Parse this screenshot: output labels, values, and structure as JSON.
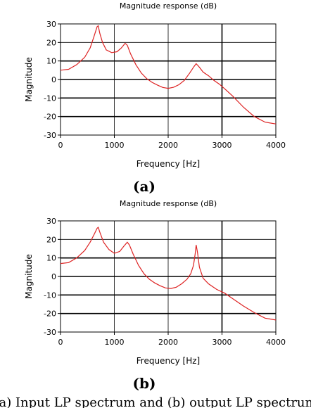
{
  "chart_data": [
    {
      "type": "line",
      "panel_label": "(a)",
      "title": "Magnitude response (dB)",
      "xlabel": "Frequency [Hz]",
      "ylabel": "Magnitude",
      "xlim": [
        0,
        4000
      ],
      "ylim": [
        -30,
        30
      ],
      "xticks": [
        0,
        1000,
        2000,
        3000,
        4000
      ],
      "yticks": [
        30,
        20,
        10,
        0,
        -10,
        -20,
        -30
      ],
      "grid": true,
      "series": [
        {
          "color": "#dd2222",
          "points": [
            [
              0,
              5
            ],
            [
              150,
              5.5
            ],
            [
              300,
              8
            ],
            [
              450,
              12
            ],
            [
              550,
              17
            ],
            [
              620,
              23
            ],
            [
              680,
              28.5
            ],
            [
              700,
              29
            ],
            [
              730,
              25
            ],
            [
              780,
              20
            ],
            [
              850,
              16
            ],
            [
              950,
              14.5
            ],
            [
              1050,
              15
            ],
            [
              1130,
              17
            ],
            [
              1200,
              19.5
            ],
            [
              1240,
              18.5
            ],
            [
              1300,
              14
            ],
            [
              1400,
              8
            ],
            [
              1500,
              3.5
            ],
            [
              1600,
              0.5
            ],
            [
              1700,
              -1.5
            ],
            [
              1800,
              -3
            ],
            [
              1900,
              -4.3
            ],
            [
              2000,
              -4.8
            ],
            [
              2100,
              -4.2
            ],
            [
              2200,
              -2.8
            ],
            [
              2300,
              -0.5
            ],
            [
              2400,
              3.5
            ],
            [
              2480,
              7
            ],
            [
              2520,
              8.5
            ],
            [
              2570,
              7
            ],
            [
              2650,
              4
            ],
            [
              2750,
              2
            ],
            [
              2850,
              -0.5
            ],
            [
              2950,
              -2.5
            ],
            [
              3050,
              -5
            ],
            [
              3200,
              -9
            ],
            [
              3400,
              -15
            ],
            [
              3600,
              -20
            ],
            [
              3800,
              -23
            ],
            [
              4000,
              -24
            ]
          ]
        }
      ]
    },
    {
      "type": "line",
      "panel_label": "(b)",
      "title": "Magnitude response (dB)",
      "xlabel": "Frequency [Hz]",
      "ylabel": "Magnitude",
      "xlim": [
        0,
        4000
      ],
      "ylim": [
        -30,
        30
      ],
      "xticks": [
        0,
        1000,
        2000,
        3000,
        4000
      ],
      "yticks": [
        30,
        20,
        10,
        0,
        -10,
        -20,
        -30
      ],
      "grid": true,
      "series": [
        {
          "color": "#dd2222",
          "points": [
            [
              0,
              7
            ],
            [
              150,
              7.5
            ],
            [
              300,
              10
            ],
            [
              450,
              14
            ],
            [
              550,
              18.5
            ],
            [
              630,
              23
            ],
            [
              680,
              26
            ],
            [
              700,
              26.5
            ],
            [
              730,
              24
            ],
            [
              800,
              18.5
            ],
            [
              900,
              14.5
            ],
            [
              1000,
              12.5
            ],
            [
              1100,
              13.5
            ],
            [
              1180,
              16.5
            ],
            [
              1240,
              18.5
            ],
            [
              1280,
              17
            ],
            [
              1350,
              12
            ],
            [
              1450,
              6
            ],
            [
              1550,
              1.5
            ],
            [
              1650,
              -1.5
            ],
            [
              1750,
              -3.5
            ],
            [
              1850,
              -5
            ],
            [
              1950,
              -6.2
            ],
            [
              2050,
              -6.5
            ],
            [
              2150,
              -5.8
            ],
            [
              2250,
              -4
            ],
            [
              2350,
              -1.5
            ],
            [
              2420,
              1.5
            ],
            [
              2470,
              6
            ],
            [
              2500,
              12
            ],
            [
              2520,
              17
            ],
            [
              2545,
              13
            ],
            [
              2580,
              5
            ],
            [
              2650,
              -1
            ],
            [
              2750,
              -4
            ],
            [
              2900,
              -7
            ],
            [
              3050,
              -9
            ],
            [
              3200,
              -12
            ],
            [
              3400,
              -16
            ],
            [
              3600,
              -19.5
            ],
            [
              3800,
              -22.5
            ],
            [
              4000,
              -23.5
            ]
          ]
        }
      ]
    }
  ],
  "caption": "(a) Input LP spectrum and (b) output LP spectrum"
}
